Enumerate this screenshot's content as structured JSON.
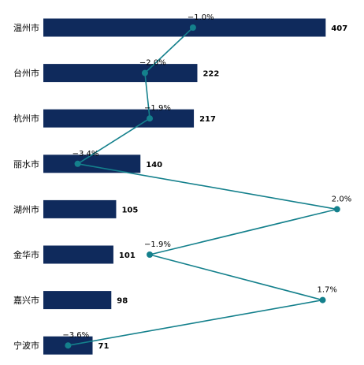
{
  "chart_data": {
    "type": "bar",
    "orientation": "horizontal",
    "categories": [
      "温州市",
      "台州市",
      "杭州市",
      "丽水市",
      "湖州市",
      "金华市",
      "嘉兴市",
      "宁波市"
    ],
    "series": [
      {
        "values": [
          407,
          222,
          217,
          140,
          105,
          101,
          98,
          71
        ]
      },
      {
        "values": [
          -1.0,
          -2.0,
          -1.9,
          -3.4,
          2.0,
          -1.9,
          1.7,
          -3.6
        ],
        "labels": [
          "−1.0%",
          "−2.0%",
          "−1.9%",
          "−3.4%",
          "2.0%",
          "−1.9%",
          "1.7%",
          "−3.6%"
        ]
      }
    ],
    "bar_range": [
      0,
      410
    ],
    "line_range": [
      -4.0,
      2.2
    ],
    "grid": false,
    "legend": "none"
  },
  "colors": {
    "bar": "#0f2a5c",
    "line": "#14808c"
  }
}
